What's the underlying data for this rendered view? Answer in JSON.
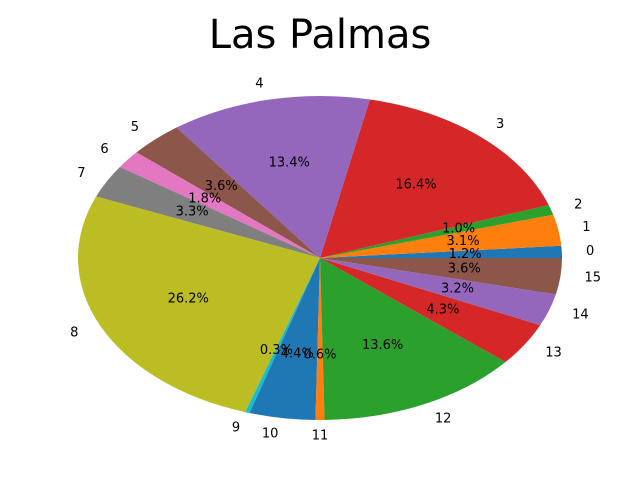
{
  "chart_data": {
    "type": "pie",
    "title": "Las Palmas",
    "start_angle": 0,
    "direction": "counterclockwise",
    "slices": [
      {
        "label": "0",
        "value": 1.2,
        "pct_label": "1.2%",
        "color": "#1f77b4"
      },
      {
        "label": "1",
        "value": 3.1,
        "pct_label": "3.1%",
        "color": "#ff7f0e"
      },
      {
        "label": "2",
        "value": 1.0,
        "pct_label": "1.0%",
        "color": "#2ca02c"
      },
      {
        "label": "3",
        "value": 16.4,
        "pct_label": "16.4%",
        "color": "#d62728"
      },
      {
        "label": "4",
        "value": 13.4,
        "pct_label": "13.4%",
        "color": "#9467bd"
      },
      {
        "label": "5",
        "value": 3.6,
        "pct_label": "3.6%",
        "color": "#8c564b"
      },
      {
        "label": "6",
        "value": 1.8,
        "pct_label": "1.8%",
        "color": "#e377c2"
      },
      {
        "label": "7",
        "value": 3.3,
        "pct_label": "3.3%",
        "color": "#7f7f7f"
      },
      {
        "label": "8",
        "value": 26.2,
        "pct_label": "26.2%",
        "color": "#bcbd22"
      },
      {
        "label": "9",
        "value": 0.3,
        "pct_label": "0.3%",
        "color": "#17becf"
      },
      {
        "label": "10",
        "value": 4.4,
        "pct_label": "4.4%",
        "color": "#1f77b4"
      },
      {
        "label": "11",
        "value": 0.6,
        "pct_label": "0.6%",
        "color": "#ff7f0e"
      },
      {
        "label": "12",
        "value": 13.6,
        "pct_label": "13.6%",
        "color": "#2ca02c"
      },
      {
        "label": "13",
        "value": 4.3,
        "pct_label": "4.3%",
        "color": "#d62728"
      },
      {
        "label": "14",
        "value": 3.2,
        "pct_label": "3.2%",
        "color": "#9467bd"
      },
      {
        "label": "15",
        "value": 3.6,
        "pct_label": "3.6%",
        "color": "#8c564b"
      }
    ]
  }
}
